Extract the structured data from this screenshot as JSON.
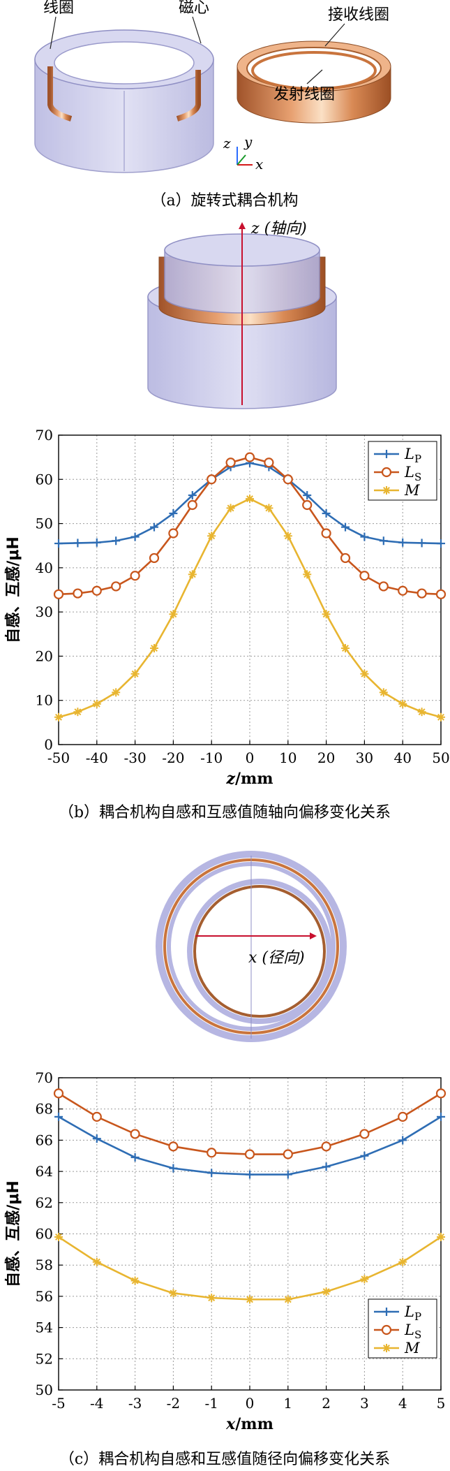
{
  "figure_a": {
    "caption": "（a）旋转式耦合机构",
    "labels": {
      "coil": "线圈",
      "core": "磁心",
      "receive_coil": "接收线圈",
      "transmit_coil": "发射线圈",
      "axis_x": "x",
      "axis_y": "y",
      "axis_z": "z"
    }
  },
  "figure_b": {
    "caption": "（b）耦合机构自感和互感值随轴向偏移变化关系",
    "axis_arrow_label": "z (轴向)"
  },
  "figure_c": {
    "caption": "（c）耦合机构自感和互感值随径向偏移变化关系",
    "axis_arrow_label": "x (径向)"
  },
  "colors": {
    "LP": "#2e6db4",
    "LS": "#c8561c",
    "M": "#e8b530",
    "core_fill": "#c9c9ea",
    "core_edge": "#8f8fc4",
    "copper": "#c9743d",
    "grid": "#9a9a9a"
  },
  "chart_data": [
    {
      "type": "line",
      "xlabel_var": "z",
      "xlabel_unit": "/mm",
      "ylabel": "自感、互感/μH",
      "xlim": [
        -50,
        50
      ],
      "ylim": [
        0,
        70
      ],
      "xticks": [
        -50,
        -40,
        -30,
        -20,
        -10,
        0,
        10,
        20,
        30,
        40,
        50
      ],
      "yticks": [
        0,
        10,
        20,
        30,
        40,
        50,
        60,
        70
      ],
      "grid": true,
      "legend_position": "top-right",
      "x": [
        -50,
        -45,
        -40,
        -35,
        -30,
        -25,
        -20,
        -15,
        -10,
        -5,
        0,
        5,
        10,
        15,
        20,
        25,
        30,
        35,
        40,
        45,
        50
      ],
      "series": [
        {
          "key": "LP",
          "name": "L",
          "sub": "P",
          "marker": "plus",
          "values": [
            45.5,
            45.6,
            45.7,
            46.1,
            47.0,
            49.2,
            52.3,
            56.4,
            60.0,
            62.8,
            63.7,
            62.8,
            60.0,
            56.4,
            52.3,
            49.2,
            47.0,
            46.1,
            45.7,
            45.6,
            45.5
          ]
        },
        {
          "key": "LS",
          "name": "L",
          "sub": "S",
          "marker": "circle",
          "values": [
            34.0,
            34.2,
            34.8,
            35.8,
            38.2,
            42.2,
            47.8,
            54.2,
            60.0,
            63.8,
            65.0,
            63.8,
            60.0,
            54.2,
            47.8,
            42.2,
            38.2,
            35.8,
            34.8,
            34.2,
            34.0
          ]
        },
        {
          "key": "M",
          "name": "M",
          "sub": "",
          "marker": "star",
          "values": [
            6.2,
            7.4,
            9.2,
            11.8,
            16.0,
            21.8,
            29.5,
            38.5,
            47.2,
            53.5,
            55.6,
            53.5,
            47.2,
            38.5,
            29.5,
            21.8,
            16.0,
            11.8,
            9.2,
            7.4,
            6.2
          ]
        }
      ]
    },
    {
      "type": "line",
      "xlabel_var": "x",
      "xlabel_unit": "/mm",
      "ylabel": "自感、互感/μH",
      "xlim": [
        -5,
        5
      ],
      "ylim": [
        50,
        70
      ],
      "xticks": [
        -5,
        -4,
        -3,
        -2,
        -1,
        0,
        1,
        2,
        3,
        4,
        5
      ],
      "yticks": [
        50,
        52,
        54,
        56,
        58,
        60,
        62,
        64,
        66,
        68,
        70
      ],
      "grid": true,
      "legend_position": "bottom-right",
      "x": [
        -5,
        -4,
        -3,
        -2,
        -1,
        0,
        1,
        2,
        3,
        4,
        5
      ],
      "series": [
        {
          "key": "LP",
          "name": "L",
          "sub": "P",
          "marker": "plus",
          "values": [
            67.5,
            66.1,
            64.9,
            64.2,
            63.9,
            63.8,
            63.8,
            64.3,
            65.0,
            66.0,
            67.5
          ]
        },
        {
          "key": "LS",
          "name": "L",
          "sub": "S",
          "marker": "circle",
          "values": [
            69.0,
            67.5,
            66.4,
            65.6,
            65.2,
            65.1,
            65.1,
            65.6,
            66.4,
            67.5,
            69.0
          ]
        },
        {
          "key": "M",
          "name": "M",
          "sub": "",
          "marker": "star",
          "values": [
            59.8,
            58.2,
            57.0,
            56.2,
            55.9,
            55.8,
            55.8,
            56.3,
            57.1,
            58.2,
            59.8
          ]
        }
      ]
    }
  ]
}
